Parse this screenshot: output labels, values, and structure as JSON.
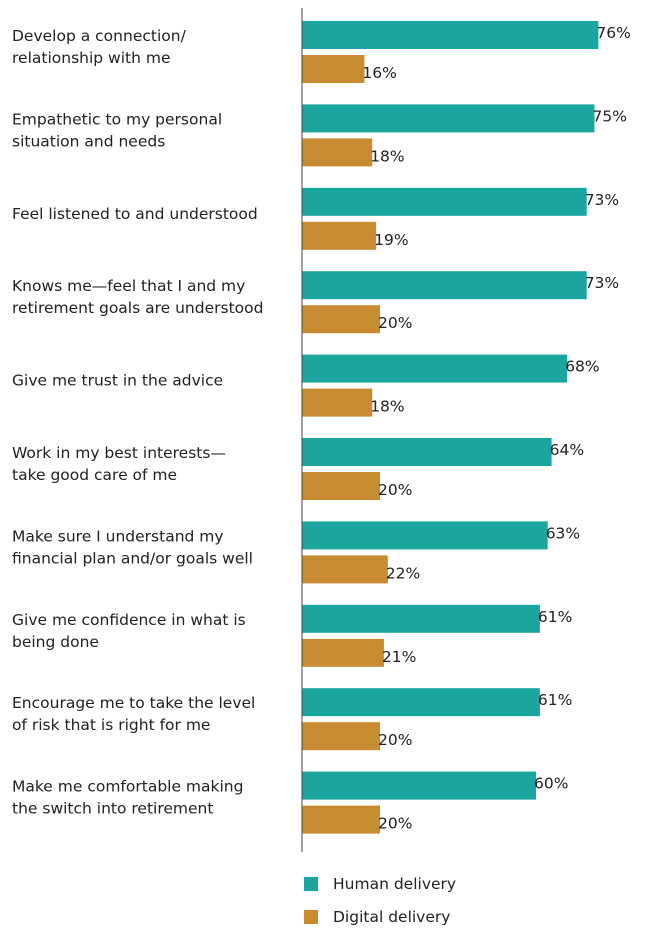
{
  "chart_data": {
    "type": "bar",
    "orientation": "horizontal",
    "categories": [
      [
        "Develop a connection/",
        "relationship with me"
      ],
      [
        "Empathetic to my personal",
        "situation and needs"
      ],
      [
        "Feel listened to and understood"
      ],
      [
        "Knows me—feel that I and my",
        "retirement goals are understood"
      ],
      [
        "Give me trust in the advice"
      ],
      [
        "Work in my best interests—",
        "take good care of me"
      ],
      [
        "Make sure I understand my",
        "financial plan and/or goals well"
      ],
      [
        "Give me confidence in what is",
        "being done"
      ],
      [
        "Encourage me to take the level",
        "of risk that is right for me"
      ],
      [
        "Make me comfortable making",
        "the switch into retirement"
      ]
    ],
    "series": [
      {
        "name": "Human delivery",
        "color": "#1aa59e",
        "values": [
          76,
          75,
          73,
          73,
          68,
          64,
          63,
          61,
          61,
          60
        ],
        "labels": [
          "76%",
          "75%",
          "73%",
          "73%",
          "68%",
          "64%",
          "63%",
          "61%",
          "61%",
          "60%"
        ]
      },
      {
        "name": "Digital delivery",
        "color": "#c98b2f",
        "values": [
          16,
          18,
          19,
          20,
          18,
          20,
          22,
          21,
          20,
          20
        ],
        "labels": [
          "16%",
          "18%",
          "19%",
          "20%",
          "18%",
          "20%",
          "22%",
          "21%",
          "20%",
          "20%"
        ]
      }
    ],
    "xlim": [
      0,
      100
    ],
    "grid": false,
    "legend_position": "bottom"
  }
}
